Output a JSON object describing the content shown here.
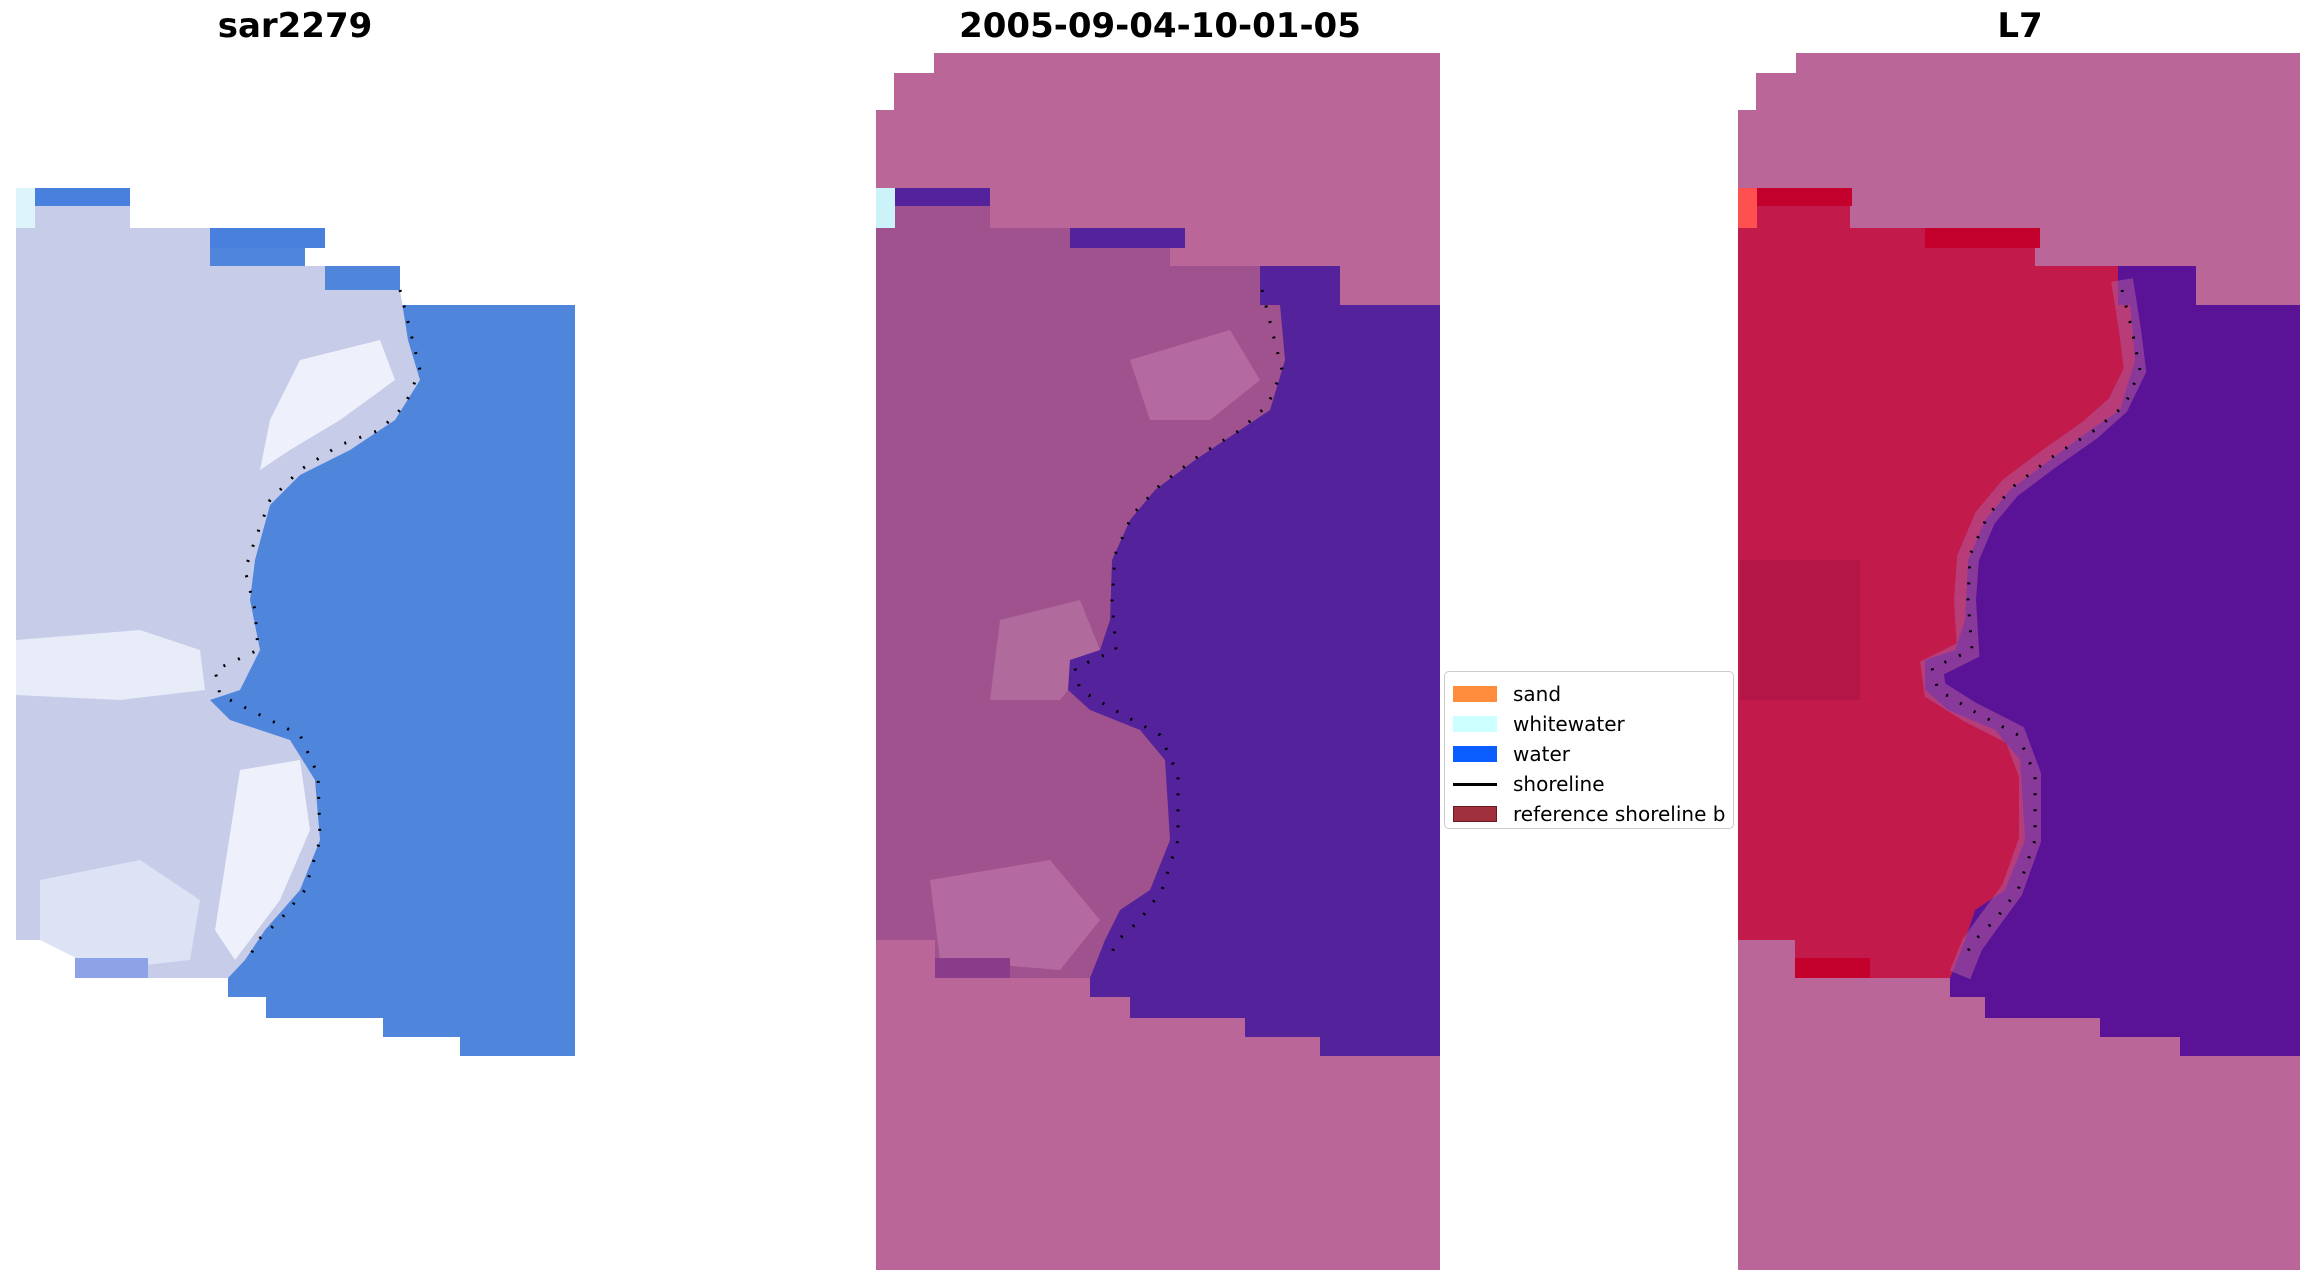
{
  "panels": [
    {
      "title": "sar2279"
    },
    {
      "title": "2005-09-04-10-01-05"
    },
    {
      "title": "L7"
    }
  ],
  "legend": {
    "items": [
      {
        "label": "sand",
        "type": "patch",
        "color": "#ff8c3d"
      },
      {
        "label": "whitewater",
        "type": "patch",
        "color": "#ccffff"
      },
      {
        "label": "water",
        "type": "patch",
        "color": "#0a5dff"
      },
      {
        "label": "shoreline",
        "type": "line",
        "color": "#000000"
      },
      {
        "label": "reference shoreline b",
        "type": "patch",
        "color": "#a0303c"
      }
    ]
  },
  "colors": {
    "nodata": "#bb6699",
    "water_false_color": "#4f86dc",
    "sand_false_color": "#c4cae8",
    "land_classified": "#a0528e",
    "water_classified": "#54229a",
    "land_index": "#c21a4a",
    "water_index": "#5a1296"
  }
}
